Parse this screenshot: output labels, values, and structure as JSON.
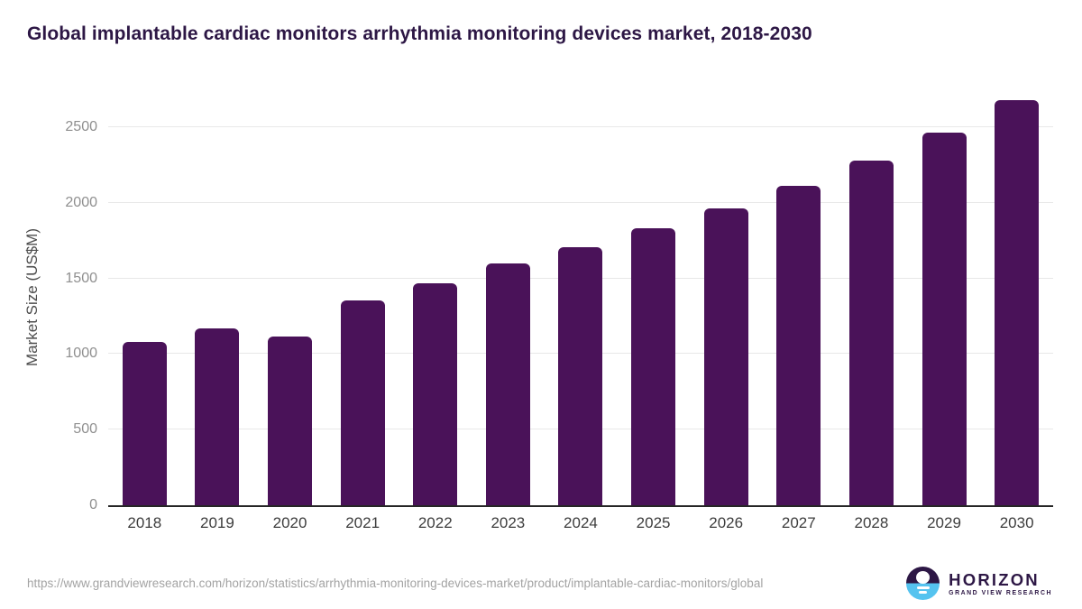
{
  "title": "Global implantable cardiac monitors arrhythmia monitoring devices market, 2018-2030",
  "chart_data": {
    "type": "bar",
    "title": "Global implantable cardiac monitors arrhythmia monitoring devices market, 2018-2030",
    "categories": [
      "2018",
      "2019",
      "2020",
      "2021",
      "2022",
      "2023",
      "2024",
      "2025",
      "2026",
      "2027",
      "2028",
      "2029",
      "2030"
    ],
    "values": [
      1080,
      1168,
      1115,
      1357,
      1470,
      1598,
      1706,
      1830,
      1964,
      2112,
      2277,
      2462,
      2678
    ],
    "xlabel": "",
    "ylabel": "Market Size (US$M)",
    "yticks": [
      0,
      500,
      1000,
      1500,
      2000,
      2500
    ],
    "ylim": [
      0,
      2745
    ],
    "grid": "horizontal",
    "legend": false,
    "bar_color": "#4a1259"
  },
  "colors": {
    "bar": "#4a1259",
    "title_text": "#2d1745",
    "axis_line": "#262626",
    "gridline": "#e8e8e8",
    "y_tick_text": "#8f8f8f",
    "x_tick_text": "#3d3d3d",
    "url_text": "#a3a3a3",
    "logo_purple": "#2d1745",
    "logo_blue": "#55c3ef"
  },
  "footer": {
    "source_url": "https://www.grandviewresearch.com/horizon/statistics/arrhythmia-monitoring-devices-market/product/implantable-cardiac-monitors/global",
    "logo": {
      "wordmark": "HORIZON",
      "subtitle": "GRAND VIEW RESEARCH"
    }
  }
}
